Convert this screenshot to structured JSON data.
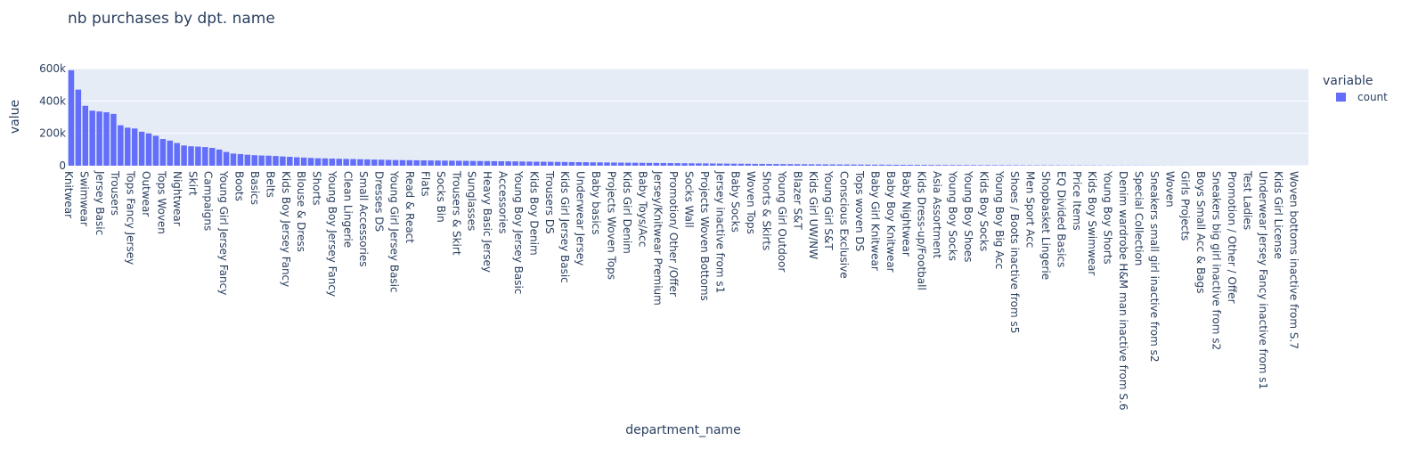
{
  "chart_data": {
    "type": "bar",
    "title": "nb purchases by dpt. name",
    "xlabel": "department_name",
    "ylabel": "value",
    "ylim": [
      0,
      600000
    ],
    "yticks": [
      {
        "value": 0,
        "label": "0"
      },
      {
        "value": 200000,
        "label": "200k"
      },
      {
        "value": 400000,
        "label": "400k"
      },
      {
        "value": 600000,
        "label": "600k"
      }
    ],
    "legend": {
      "title": "variable",
      "position": "top-right",
      "items": [
        "count"
      ]
    },
    "colors": {
      "bar": "#636efa",
      "plot_bg": "#e5ecf6",
      "grid": "#ffffff",
      "text": "#2a3f5f"
    },
    "visible_tick_labels": [
      "Knitwear",
      "Swimwear",
      "Jersey Basic",
      "Trousers",
      "Tops Fancy Jersey",
      "Outwear",
      "Tops Woven",
      "Nightwear",
      "Skirt",
      "Campaigns",
      "Young Girl Jersey Fancy",
      "Boots",
      "Basics",
      "Belts",
      "Kids Boy Jersey Fancy",
      "Blouse & Dress",
      "Shorts",
      "Young Boy Jersey Fancy",
      "Clean Lingerie",
      "Small Accessories",
      "Dresses DS",
      "Young Girl Jersey Basic",
      "Read & React",
      "Flats",
      "Socks Bin",
      "Trousers & Skirt",
      "Sunglasses",
      "Heavy Basic Jersey",
      "Accessories",
      "Young Boy Jersey Basic",
      "Kids Boy Denim",
      "Trousers DS",
      "Kids Girl Jersey Basic",
      "Underwear Jersey",
      "Baby basics",
      "Projects Woven Tops",
      "Kids Girl Denim",
      "Baby Toys/Acc",
      "Jersey/Knitwear Premium",
      "Promotion/ Other /Offer",
      "Socks Wall",
      "Projects Woven Bottoms",
      "Jersey inactive from s1",
      "Baby Socks",
      "Woven Tops",
      "Shorts & Skirts",
      "Young Girl Outdoor",
      "Blazer S&T",
      "Kids Girl UW/NW",
      "Young Girl S&T",
      "Conscious Exclusive",
      "Tops woven DS",
      "Baby Girl Knitwear",
      "Baby Boy Knitwear",
      "Baby Nightwear",
      "Kids Dress-up/Football",
      "Asia Assortment",
      "Young Boy Socks",
      "Young Boy Shoes",
      "Kids Boy Socks",
      "Young Boy Big Acc",
      "Shoes / Boots inactive from s5",
      "Men Sport Acc",
      "Shopbasket Lingerie",
      "EQ Divided Basics",
      "Price Items",
      "Kids Boy Swimwear",
      "Young Boy Shorts",
      "Denim wardrobe H&M man inactive from S.6",
      "Special Collection",
      "Sneakers small girl inactive from s2",
      "Woven",
      "Girls Projects",
      "Boys Small Acc & Bags",
      "Sneakers big girl inactive from s2",
      "Promotion / Other / Offer",
      "Test Ladies",
      "Underwear Jersey Fancy inactive from s1",
      "Kids Girl License",
      "Woven bottoms inactive from S.7"
    ],
    "series": [
      {
        "name": "count",
        "values": [
          590000,
          470000,
          370000,
          340000,
          335000,
          330000,
          320000,
          250000,
          235000,
          230000,
          210000,
          200000,
          185000,
          165000,
          155000,
          140000,
          125000,
          120000,
          118000,
          115000,
          110000,
          100000,
          85000,
          75000,
          72000,
          68000,
          65000,
          63000,
          62000,
          60000,
          57000,
          55000,
          52000,
          50000,
          48000,
          46000,
          45000,
          44000,
          43000,
          42000,
          41000,
          40000,
          39000,
          38000,
          37000,
          36000,
          35000,
          34500,
          34000,
          33500,
          33000,
          32500,
          32000,
          31500,
          31000,
          30500,
          30000,
          29500,
          29000,
          28500,
          28000,
          27500,
          27000,
          26500,
          26000,
          25500,
          25000,
          24500,
          24000,
          23500,
          23000,
          22500,
          22000,
          21500,
          21000,
          20500,
          20000,
          19500,
          19000,
          18600,
          18200,
          17800,
          17400,
          17000,
          16600,
          16200,
          15800,
          15400,
          15000,
          14600,
          14200,
          13800,
          13400,
          13000,
          12600,
          12200,
          11800,
          11400,
          11000,
          10700,
          10400,
          10100,
          9800,
          9500,
          9200,
          8900,
          8600,
          8300,
          8000,
          7750,
          7500,
          7250,
          7000,
          6750,
          6500,
          6250,
          6000,
          5800,
          5600,
          5400,
          5200,
          5000,
          4800,
          4600,
          4400,
          4200,
          4000,
          3850,
          3700,
          3550,
          3400,
          3250,
          3100,
          2950,
          2800,
          2650,
          2500,
          2400,
          2300,
          2200,
          2100,
          2000,
          1900,
          1800,
          1700,
          1600,
          1500,
          1420,
          1340,
          1260,
          1180,
          1100,
          1020,
          940,
          860,
          780,
          700,
          650,
          600,
          550,
          500,
          450,
          400,
          360,
          320,
          280,
          240,
          200,
          170,
          140,
          110,
          90,
          70,
          50,
          30,
          15
        ]
      }
    ]
  }
}
